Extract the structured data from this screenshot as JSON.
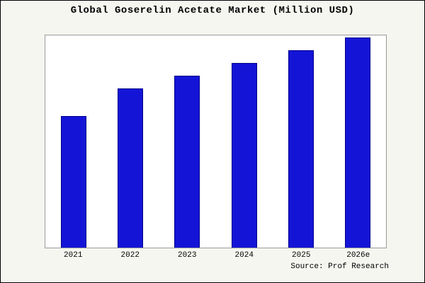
{
  "title": "Global Goserelin Acetate Market (Million USD)",
  "source": "Source: Prof Research",
  "colors": {
    "background": "#f6f6f0",
    "plot_background": "#ffffff",
    "plot_border": "#9a9a9a",
    "bar_fill": "#1414d7",
    "bar_edge": "#00008b"
  },
  "chart_data": {
    "type": "bar",
    "title": "Global Goserelin Acetate Market (Million USD)",
    "categories": [
      "2021",
      "2022",
      "2023",
      "2024",
      "2025",
      "2026e"
    ],
    "values": [
      62,
      75,
      81,
      87,
      93,
      99
    ],
    "xlabel": "",
    "ylabel": "",
    "ylim": [
      0,
      100
    ],
    "grid": false,
    "legend": false,
    "y_axis_labels_visible": false,
    "annotation": "Source: Prof Research"
  }
}
